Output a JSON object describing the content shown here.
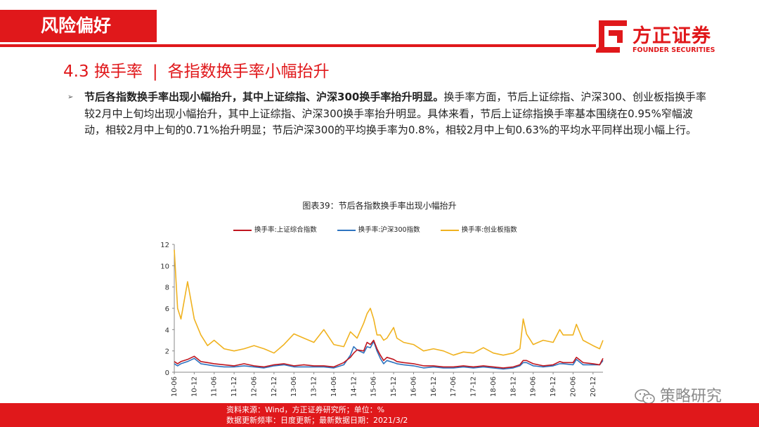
{
  "header": {
    "section_tag": "风险偏好"
  },
  "brand": {
    "name_cn": "方正证券",
    "name_en": "FOUNDER SECURITIES",
    "color": "#e0181b"
  },
  "heading": {
    "number": "4.3 换手率",
    "separator": "|",
    "title": "各指数换手率小幅抬升"
  },
  "body": {
    "lead": "节后各指数换手率出现小幅抬升，其中上证综指、沪深300换手率抬升明显。",
    "text": "换手率方面，节后上证综指、沪深300、创业板指换手率较2月中上旬均出现小幅抬升，其中上证综指、沪深300换手率抬升明显。具体来看，节后上证综指换手率基本围绕在0.95%窄幅波动，相较2月中上旬的0.71%抬升明显；节后沪深300的平均换手率为0.8%，相较2月中上旬0.63%的平均水平同样出现小幅上行。"
  },
  "chart_title": "图表39：节后各指数换手率出现小幅抬升",
  "footer": {
    "source": "资料来源：Wind，方正证券研究所；单位：%",
    "update": "数据更新频率：日度更新；最新数据日期：2021/3/2"
  },
  "watermark": {
    "label": "策略研究",
    "icon": "wechat-icon"
  },
  "chart_data": {
    "type": "line",
    "ylim": [
      0,
      12
    ],
    "yticks": [
      0,
      2,
      4,
      6,
      8,
      10,
      12
    ],
    "xlim": [
      "2010-06",
      "2021-03"
    ],
    "x_ticks": [
      "10-06",
      "10-12",
      "11-06",
      "11-12",
      "12-06",
      "12-12",
      "13-06",
      "13-12",
      "14-06",
      "14-12",
      "15-06",
      "15-12",
      "16-06",
      "16-12",
      "17-06",
      "17-12",
      "18-06",
      "18-12",
      "19-06",
      "19-12",
      "20-06",
      "20-12"
    ],
    "legend_position": "top",
    "grid": false,
    "x": [
      "2010-06",
      "2010-07",
      "2010-08",
      "2010-10",
      "2010-12",
      "2011-02",
      "2011-04",
      "2011-06",
      "2011-09",
      "2011-12",
      "2012-03",
      "2012-06",
      "2012-09",
      "2012-12",
      "2013-03",
      "2013-06",
      "2013-09",
      "2013-12",
      "2014-03",
      "2014-06",
      "2014-09",
      "2014-11",
      "2014-12",
      "2015-01",
      "2015-03",
      "2015-04",
      "2015-05",
      "2015-06",
      "2015-07",
      "2015-08",
      "2015-09",
      "2015-10",
      "2015-12",
      "2016-01",
      "2016-03",
      "2016-06",
      "2016-09",
      "2016-12",
      "2017-03",
      "2017-06",
      "2017-09",
      "2017-12",
      "2018-03",
      "2018-06",
      "2018-09",
      "2018-12",
      "2019-02",
      "2019-03",
      "2019-04",
      "2019-06",
      "2019-09",
      "2019-12",
      "2020-02",
      "2020-03",
      "2020-06",
      "2020-07",
      "2020-09",
      "2020-12",
      "2021-02",
      "2021-03"
    ],
    "series": [
      {
        "name": "换手率:上证综合指数",
        "color": "#c0161f",
        "values": [
          1.0,
          0.8,
          1.0,
          1.2,
          1.5,
          1.0,
          0.9,
          0.8,
          0.7,
          0.6,
          0.8,
          0.6,
          0.5,
          0.7,
          0.8,
          0.6,
          0.7,
          0.6,
          0.6,
          0.5,
          0.9,
          1.4,
          1.8,
          2.1,
          2.0,
          2.8,
          2.6,
          3.0,
          2.2,
          1.6,
          1.1,
          1.4,
          1.2,
          1.0,
          0.9,
          0.8,
          0.6,
          0.6,
          0.5,
          0.5,
          0.6,
          0.5,
          0.6,
          0.5,
          0.4,
          0.5,
          0.7,
          1.1,
          1.1,
          0.8,
          0.6,
          0.7,
          1.0,
          0.9,
          0.9,
          1.4,
          0.9,
          0.8,
          0.7,
          1.3
        ]
      },
      {
        "name": "换手率:沪深300指数",
        "color": "#2e74c0",
        "values": [
          0.8,
          0.6,
          0.8,
          1.0,
          1.3,
          0.8,
          0.7,
          0.6,
          0.5,
          0.5,
          0.6,
          0.5,
          0.4,
          0.6,
          0.7,
          0.5,
          0.5,
          0.5,
          0.5,
          0.4,
          0.7,
          1.6,
          2.4,
          2.1,
          1.8,
          2.4,
          2.3,
          2.9,
          2.0,
          1.3,
          0.8,
          1.1,
          0.9,
          0.8,
          0.7,
          0.6,
          0.4,
          0.5,
          0.4,
          0.4,
          0.5,
          0.4,
          0.5,
          0.4,
          0.3,
          0.4,
          0.6,
          0.9,
          0.9,
          0.6,
          0.5,
          0.6,
          0.8,
          0.8,
          0.7,
          1.2,
          0.7,
          0.7,
          0.7,
          1.1
        ]
      },
      {
        "name": "换手率:创业板指数",
        "color": "#f0b21f",
        "values": [
          11.5,
          6.0,
          5.0,
          8.5,
          5.0,
          3.5,
          2.5,
          3.0,
          2.2,
          2.0,
          2.2,
          2.5,
          2.2,
          1.8,
          2.6,
          3.6,
          3.2,
          2.8,
          4.0,
          2.6,
          2.4,
          3.8,
          3.5,
          3.2,
          4.6,
          5.5,
          6.0,
          5.0,
          3.5,
          3.5,
          3.0,
          3.2,
          4.2,
          3.2,
          2.8,
          2.6,
          2.0,
          2.2,
          2.0,
          1.6,
          1.9,
          1.8,
          2.3,
          1.8,
          1.6,
          1.8,
          2.2,
          5.0,
          3.6,
          2.6,
          3.0,
          2.8,
          4.0,
          3.5,
          3.5,
          4.5,
          3.0,
          2.5,
          2.2,
          3.0
        ]
      }
    ]
  }
}
